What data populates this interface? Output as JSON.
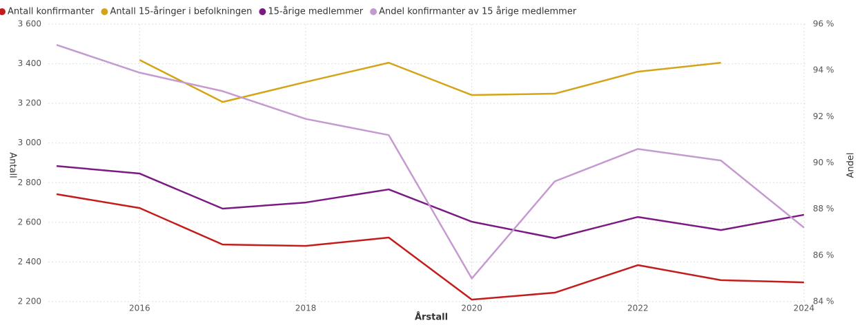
{
  "chart_data": {
    "type": "line",
    "x": [
      2015,
      2016,
      2017,
      2018,
      2019,
      2020,
      2021,
      2022,
      2023,
      2024
    ],
    "xlim": [
      2015,
      2024
    ],
    "xticks": [
      2016,
      2018,
      2020,
      2022,
      2024
    ],
    "xlabel": "Årstall",
    "ylabel": "Antall",
    "y2label": "Andel",
    "ylim": [
      2200,
      3600
    ],
    "yticks": [
      {
        "value": 2200,
        "label": "2 200"
      },
      {
        "value": 2400,
        "label": "2 400"
      },
      {
        "value": 2600,
        "label": "2 600"
      },
      {
        "value": 2800,
        "label": "2 800"
      },
      {
        "value": 3000,
        "label": "3 000"
      },
      {
        "value": 3200,
        "label": "3 200"
      },
      {
        "value": 3400,
        "label": "3 400"
      },
      {
        "value": 3600,
        "label": "3 600"
      }
    ],
    "y2lim": [
      84,
      96
    ],
    "y2ticks": [
      {
        "value": 84,
        "label": "84 %"
      },
      {
        "value": 86,
        "label": "86 %"
      },
      {
        "value": 88,
        "label": "88 %"
      },
      {
        "value": 90,
        "label": "90 %"
      },
      {
        "value": 92,
        "label": "92 %"
      },
      {
        "value": 94,
        "label": "94 %"
      },
      {
        "value": 96,
        "label": "96 %"
      }
    ],
    "grid": true,
    "series": [
      {
        "name": "Antall konfirmanter",
        "color": "#c41b1b",
        "values": [
          2742,
          2672,
          2488,
          2481,
          2523,
          2210,
          2245,
          2384,
          2308,
          2297
        ]
      },
      {
        "name": "Antall 15-åringer i befolkningen",
        "color": "#d4a417",
        "values": [
          null,
          3419,
          3207,
          3308,
          3405,
          3242,
          3249,
          3360,
          3405,
          null
        ]
      },
      {
        "name": "15-årige medlemmer",
        "color": "#7a1a82",
        "values": [
          2884,
          2846,
          2669,
          2700,
          2766,
          2603,
          2520,
          2627,
          2561,
          2638
        ]
      },
      {
        "name": "Andel konfirmanter av 15 årige medlemmer",
        "color": "#c49ad0",
        "axis": "y2",
        "values": [
          95.1,
          93.9,
          93.1,
          91.9,
          91.2,
          85.0,
          89.2,
          90.6,
          90.1,
          87.2
        ]
      }
    ]
  }
}
